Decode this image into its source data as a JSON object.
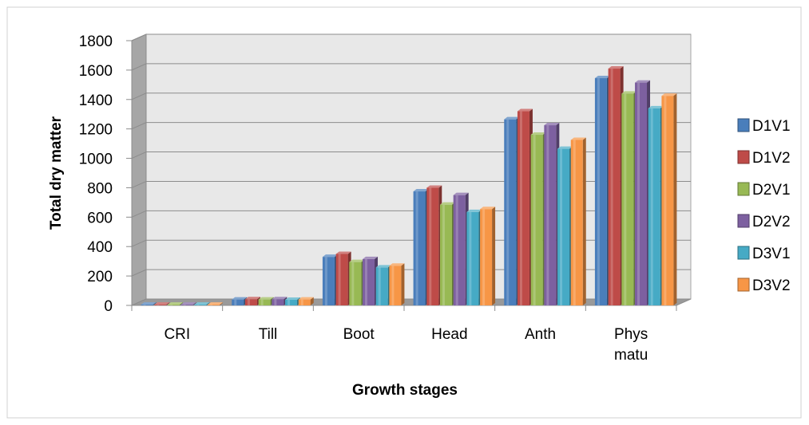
{
  "chart_data": {
    "type": "bar",
    "title": "",
    "xlabel": "Growth stages",
    "ylabel": "Total dry matter",
    "ylim": [
      0,
      1800
    ],
    "yticks": [
      "0",
      "200",
      "400",
      "600",
      "800",
      "1000",
      "1200",
      "1400",
      "1600",
      "1800"
    ],
    "grid": true,
    "legend_position": "right",
    "categories": [
      [
        "CRI"
      ],
      [
        "Till"
      ],
      [
        "Boot"
      ],
      [
        "Head"
      ],
      [
        "Anth"
      ],
      [
        "Phys",
        "matu"
      ]
    ],
    "series": [
      {
        "name": "D1V1",
        "color": "#4A7EBB",
        "values": [
          5,
          40,
          330,
          775,
          1265,
          1545
        ]
      },
      {
        "name": "D1V2",
        "color": "#BE4B48",
        "values": [
          5,
          42,
          350,
          800,
          1320,
          1610
        ]
      },
      {
        "name": "D2V1",
        "color": "#98B954",
        "values": [
          5,
          40,
          295,
          685,
          1160,
          1440
        ]
      },
      {
        "name": "D2V2",
        "color": "#7D60A0",
        "values": [
          5,
          42,
          315,
          750,
          1225,
          1515
        ]
      },
      {
        "name": "D3V1",
        "color": "#46AAC5",
        "values": [
          5,
          38,
          258,
          635,
          1065,
          1340
        ]
      },
      {
        "name": "D3V2",
        "color": "#F79646",
        "values": [
          5,
          40,
          270,
          655,
          1125,
          1425
        ]
      }
    ]
  }
}
